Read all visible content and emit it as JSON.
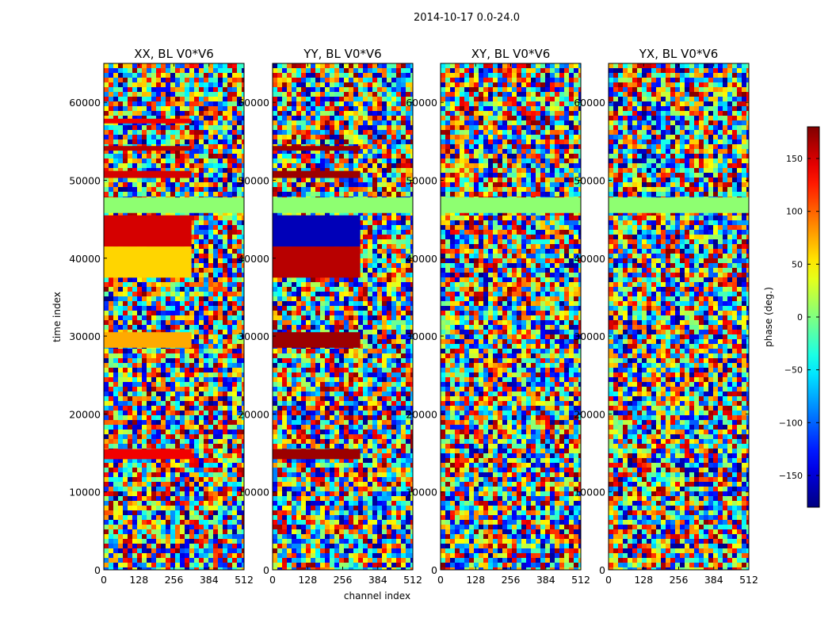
{
  "figure": {
    "suptitle": "2014-10-17 0.0-24.0"
  },
  "chart_data": {
    "type": "heatmap",
    "suptitle": "2014-10-17 0.0-24.0",
    "xlabel": "channel index",
    "ylabel": "time index",
    "xlim": [
      0,
      512
    ],
    "ylim": [
      0,
      65000
    ],
    "xticks": [
      0,
      128,
      256,
      384,
      512
    ],
    "yticks": [
      0,
      10000,
      20000,
      30000,
      40000,
      50000,
      60000
    ],
    "xtick_labels": [
      "0",
      "128",
      "256",
      "384",
      "512"
    ],
    "ytick_labels": [
      "0",
      "10000",
      "20000",
      "30000",
      "40000",
      "50000",
      "60000"
    ],
    "colormap": "jet",
    "colorbar": {
      "label": "phase (deg.)",
      "range": [
        -180,
        180
      ],
      "ticks": [
        150,
        100,
        50,
        0,
        -50,
        -100,
        -150
      ],
      "tick_labels": [
        "150",
        "100",
        "50",
        "0",
        "−50",
        "−100",
        "−150"
      ]
    },
    "panels": [
      {
        "title": "XX, BL V0*V6",
        "bands": [
          {
            "t0": 37500,
            "t1": 41500,
            "ch0": 0,
            "ch1": 320,
            "phase": 60
          },
          {
            "t0": 41500,
            "t1": 45500,
            "ch0": 0,
            "ch1": 320,
            "phase": 150
          },
          {
            "t0": 28500,
            "t1": 30500,
            "ch0": 0,
            "ch1": 320,
            "phase": 75
          },
          {
            "t0": 14200,
            "t1": 15500,
            "ch0": 0,
            "ch1": 320,
            "phase": 140
          },
          {
            "t0": 50300,
            "t1": 51200,
            "ch0": 0,
            "ch1": 320,
            "phase": 150
          },
          {
            "t0": 53800,
            "t1": 54400,
            "ch0": 0,
            "ch1": 320,
            "phase": 160
          },
          {
            "t0": 57300,
            "t1": 57900,
            "ch0": 0,
            "ch1": 320,
            "phase": 140
          },
          {
            "t0": 45800,
            "t1": 47800,
            "ch0": 0,
            "ch1": 512,
            "phase": 5
          }
        ]
      },
      {
        "title": "YY, BL V0*V6",
        "bands": [
          {
            "t0": 37500,
            "t1": 41500,
            "ch0": 0,
            "ch1": 320,
            "phase": 160
          },
          {
            "t0": 41500,
            "t1": 45500,
            "ch0": 0,
            "ch1": 320,
            "phase": -160
          },
          {
            "t0": 28500,
            "t1": 30500,
            "ch0": 0,
            "ch1": 320,
            "phase": 170
          },
          {
            "t0": 14200,
            "t1": 15500,
            "ch0": 0,
            "ch1": 320,
            "phase": 170
          },
          {
            "t0": 50300,
            "t1": 51200,
            "ch0": 0,
            "ch1": 320,
            "phase": 170
          },
          {
            "t0": 53800,
            "t1": 54400,
            "ch0": 0,
            "ch1": 320,
            "phase": 170
          },
          {
            "t0": 45800,
            "t1": 47800,
            "ch0": 0,
            "ch1": 512,
            "phase": 5
          }
        ]
      },
      {
        "title": "XY, BL V0*V6",
        "bands": [
          {
            "t0": 45800,
            "t1": 47800,
            "ch0": 0,
            "ch1": 512,
            "phase": 5
          }
        ]
      },
      {
        "title": "YX, BL V0*V6",
        "bands": [
          {
            "t0": 45800,
            "t1": 47800,
            "ch0": 0,
            "ch1": 512,
            "phase": 5
          }
        ]
      }
    ]
  }
}
